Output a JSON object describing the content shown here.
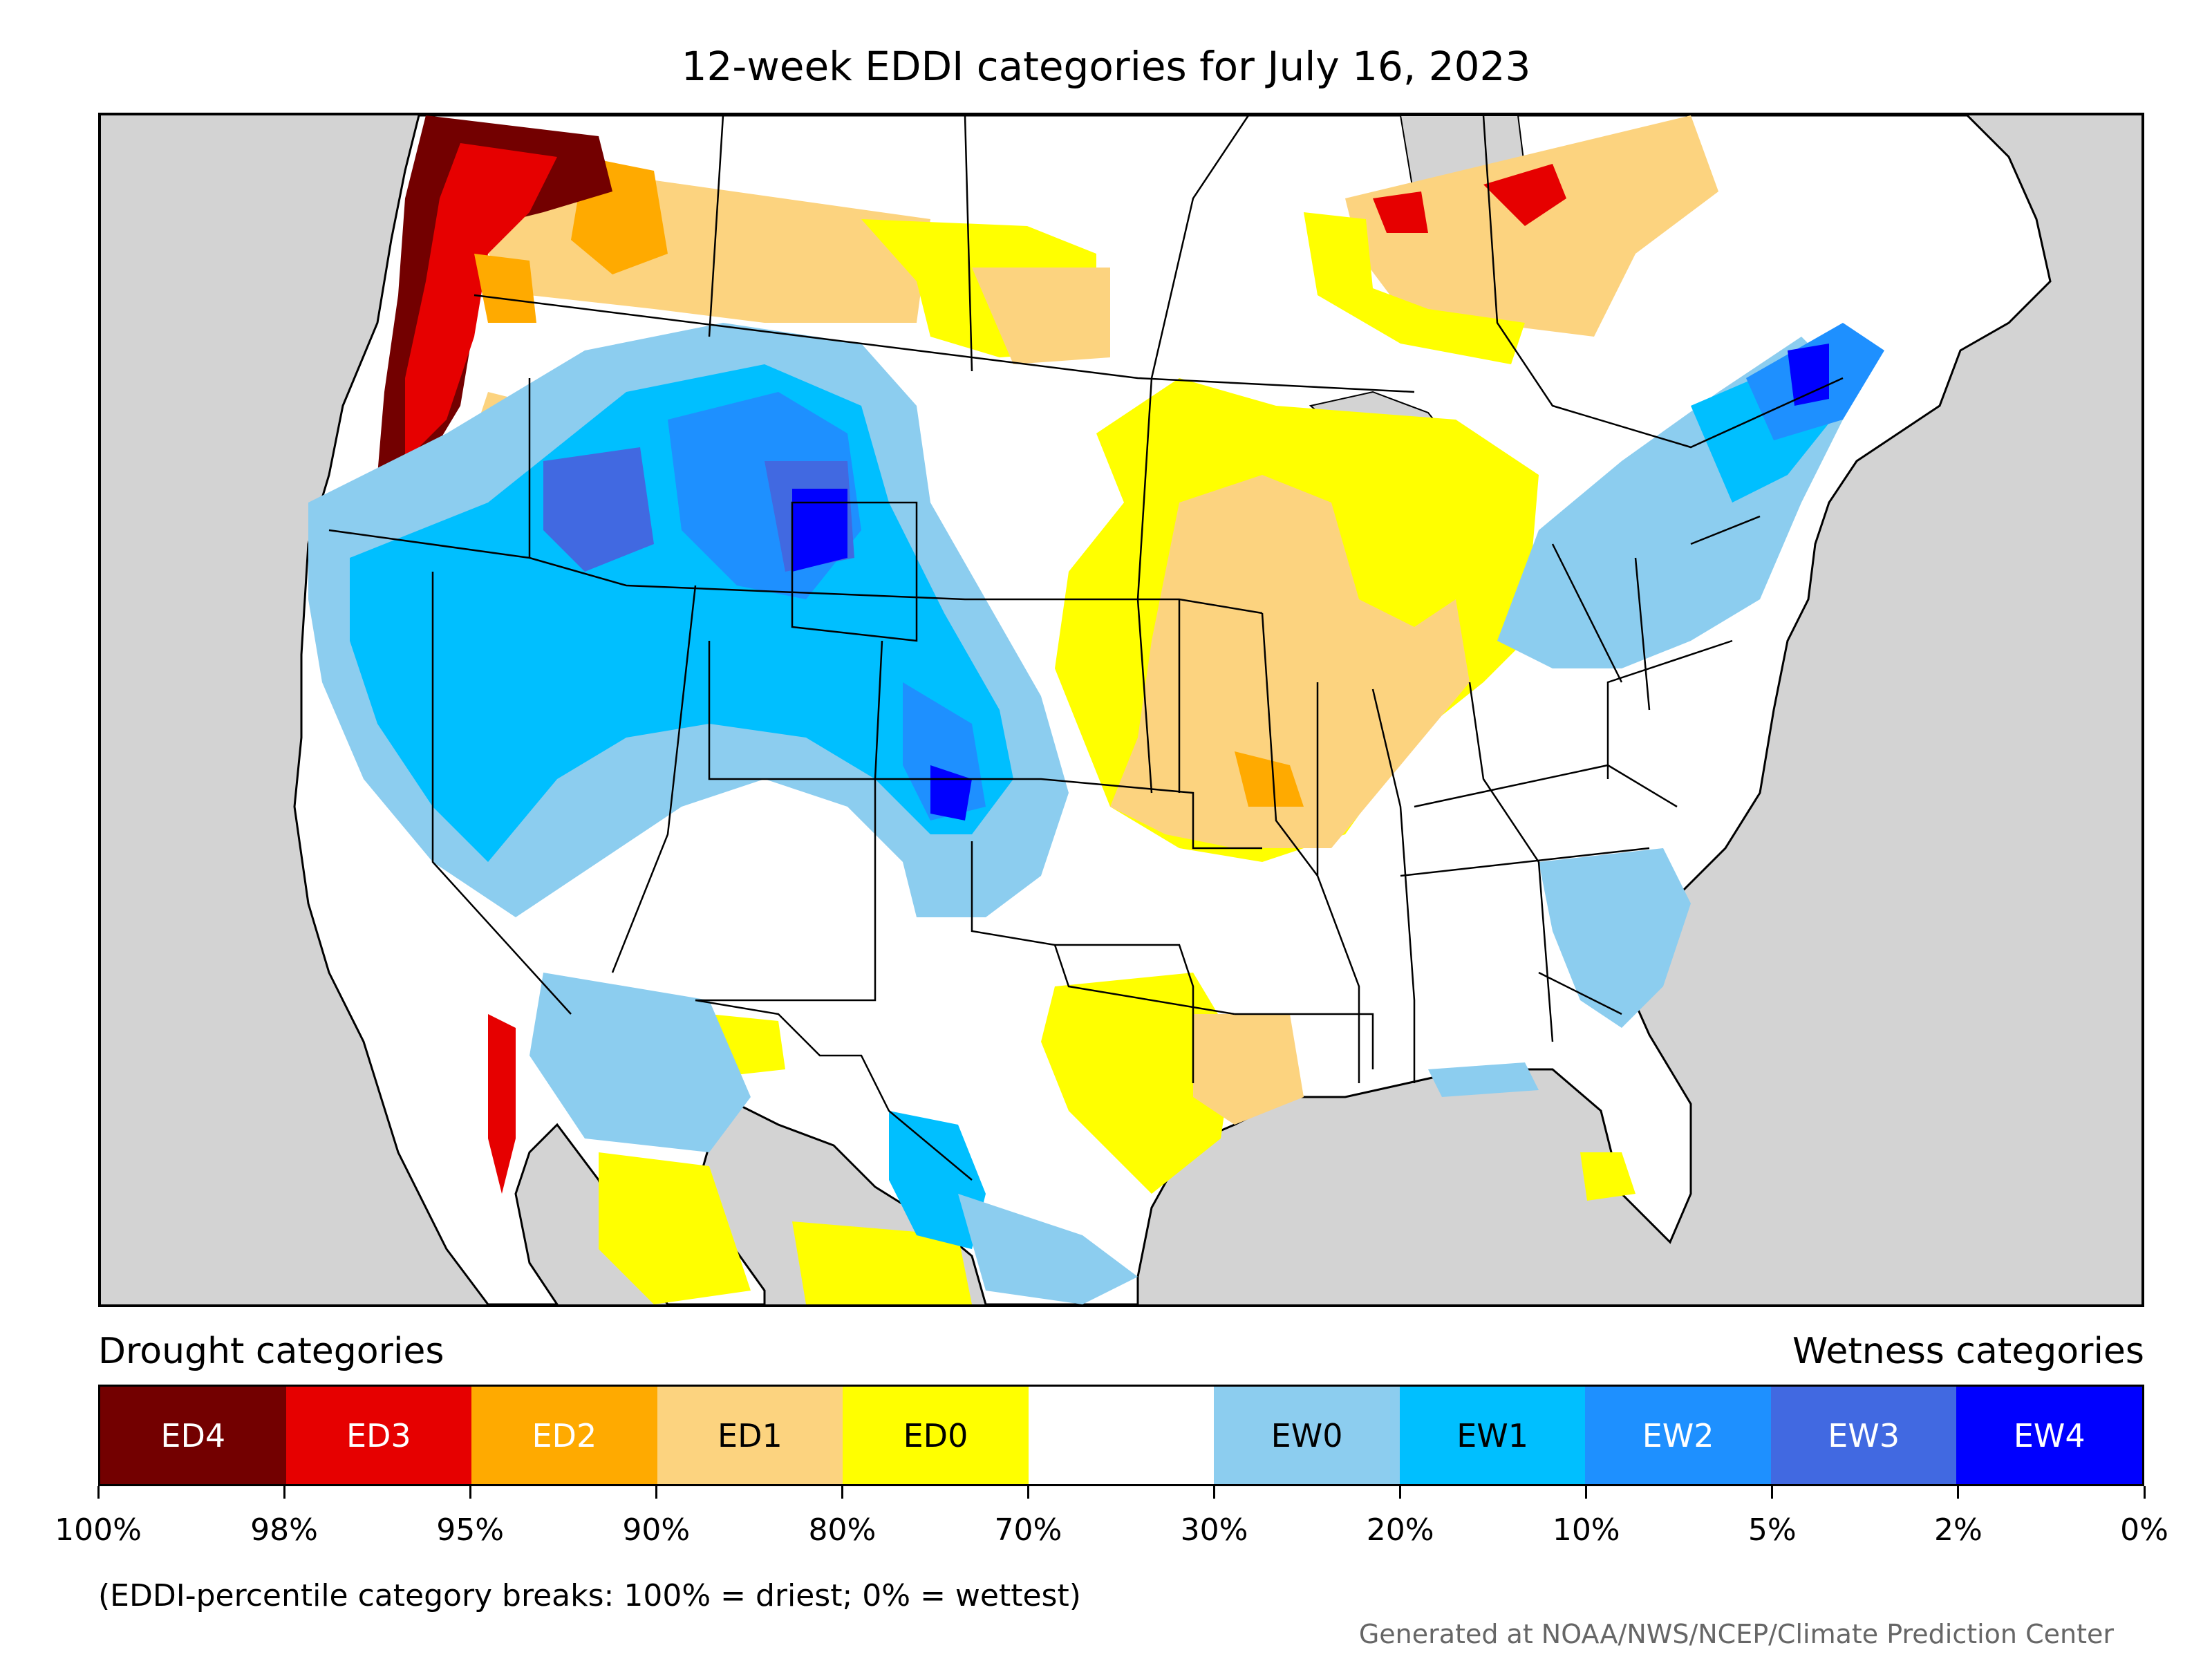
{
  "title": "12-week EDDI categories for July 16, 2023",
  "legend": {
    "drought_title": "Drought categories",
    "wetness_title": "Wetness categories",
    "categories": [
      {
        "label": "ED4",
        "color": "#730000",
        "text_color": "#ffffff"
      },
      {
        "label": "ED3",
        "color": "#e60000",
        "text_color": "#ffffff"
      },
      {
        "label": "ED2",
        "color": "#ffaa00",
        "text_color": "#ffffff"
      },
      {
        "label": "ED1",
        "color": "#fcd37f",
        "text_color": "#000000"
      },
      {
        "label": "ED0",
        "color": "#ffff00",
        "text_color": "#000000"
      },
      {
        "label": "",
        "color": "#ffffff",
        "text_color": "#000000"
      },
      {
        "label": "EW0",
        "color": "#8ccdef",
        "text_color": "#000000"
      },
      {
        "label": "EW1",
        "color": "#00bfff",
        "text_color": "#000000"
      },
      {
        "label": "EW2",
        "color": "#1e90ff",
        "text_color": "#ffffff"
      },
      {
        "label": "EW3",
        "color": "#4169e1",
        "text_color": "#ffffff"
      },
      {
        "label": "EW4",
        "color": "#0000ff",
        "text_color": "#ffffff"
      }
    ],
    "tick_labels": [
      "100%",
      "98%",
      "95%",
      "90%",
      "80%",
      "70%",
      "30%",
      "20%",
      "10%",
      "5%",
      "2%",
      "0%"
    ]
  },
  "note": "(EDDI-percentile category breaks: 100% = driest; 0% = wettest)",
  "credit": "Generated at NOAA/NWS/NCEP/Climate Prediction Center",
  "map": {
    "ocean_color": "#d3d3d3",
    "land_color": "#ffffff"
  }
}
